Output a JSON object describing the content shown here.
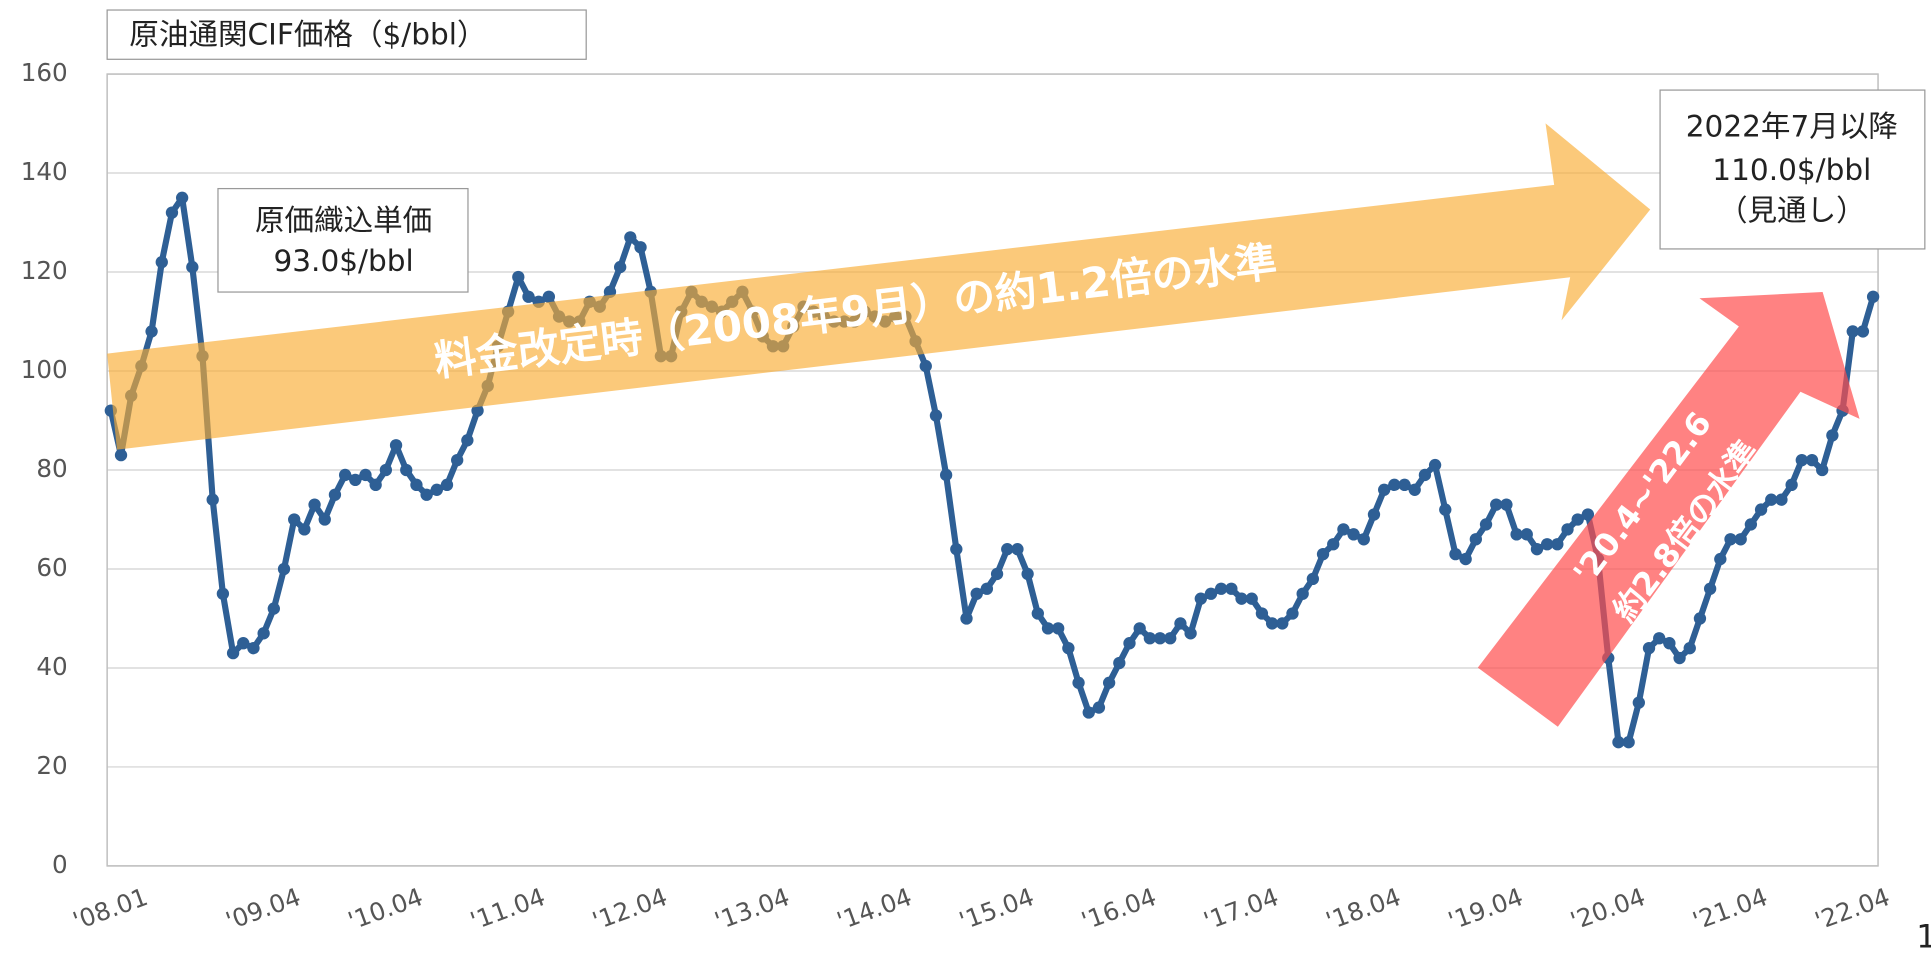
{
  "chart_data": {
    "type": "line",
    "title": "原油通関CIF価格（$/bbl）",
    "categories": [
      "'08.01",
      null,
      null,
      null,
      null,
      null,
      null,
      null,
      null,
      null,
      null,
      null,
      null,
      null,
      null,
      "'09.04",
      null,
      null,
      null,
      null,
      null,
      null,
      null,
      null,
      null,
      null,
      null,
      "'10.04",
      null,
      null,
      null,
      null,
      null,
      null,
      null,
      null,
      null,
      null,
      null,
      "'11.04",
      null,
      null,
      null,
      null,
      null,
      null,
      null,
      null,
      null,
      null,
      null,
      "'12.04",
      null,
      null,
      null,
      null,
      null,
      null,
      null,
      null,
      null,
      null,
      null,
      "'13.04",
      null,
      null,
      null,
      null,
      null,
      null,
      null,
      null,
      null,
      null,
      null,
      "'14.04",
      null,
      null,
      null,
      null,
      null,
      null,
      null,
      null,
      null,
      null,
      null,
      "'15.04",
      null,
      null,
      null,
      null,
      null,
      null,
      null,
      null,
      null,
      null,
      null,
      "'16.04",
      null,
      null,
      null,
      null,
      null,
      null,
      null,
      null,
      null,
      null,
      null,
      "'17.04",
      null,
      null,
      null,
      null,
      null,
      null,
      null,
      null,
      null,
      null,
      null,
      "'18.04",
      null,
      null,
      null,
      null,
      null,
      null,
      null,
      null,
      null,
      null,
      null,
      "'19.04",
      null,
      null,
      null,
      null,
      null,
      null,
      null,
      null,
      null,
      null,
      null,
      "'20.04",
      null,
      null,
      null,
      null,
      null,
      null,
      null,
      null,
      null,
      null,
      null,
      "'21.04",
      null,
      null,
      null,
      null,
      null,
      null,
      null,
      null,
      null,
      null,
      null,
      "'22.04",
      null,
      null
    ],
    "series": [
      {
        "name": "原油通関CIF価格",
        "color": "#2e5f95",
        "values": [
          92,
          83,
          95,
          101,
          108,
          122,
          132,
          135,
          121,
          103,
          74,
          55,
          43,
          45,
          44,
          47,
          52,
          60,
          70,
          68,
          73,
          70,
          75,
          79,
          78,
          79,
          77,
          80,
          85,
          80,
          77,
          75,
          76,
          77,
          82,
          86,
          92,
          97,
          105,
          112,
          119,
          115,
          114,
          115,
          111,
          110,
          110,
          114,
          113,
          116,
          121,
          127,
          125,
          116,
          103,
          103,
          112,
          116,
          114,
          113,
          112,
          114,
          116,
          112,
          107,
          105,
          105,
          109,
          113,
          112,
          111,
          110,
          110,
          110,
          112,
          111,
          110,
          111,
          111,
          106,
          101,
          91,
          79,
          64,
          50,
          55,
          56,
          59,
          64,
          64,
          59,
          51,
          48,
          48,
          44,
          37,
          31,
          32,
          37,
          41,
          45,
          48,
          46,
          46,
          46,
          49,
          47,
          54,
          55,
          56,
          56,
          54,
          54,
          51,
          49,
          49,
          51,
          55,
          58,
          63,
          65,
          68,
          67,
          66,
          71,
          76,
          77,
          77,
          76,
          79,
          81,
          72,
          63,
          62,
          66,
          69,
          73,
          73,
          67,
          67,
          64,
          65,
          65,
          68,
          70,
          71,
          62,
          42,
          25,
          25,
          33,
          44,
          46,
          45,
          42,
          44,
          50,
          56,
          62,
          66,
          66,
          69,
          72,
          74,
          74,
          77,
          82,
          82,
          80,
          87,
          92,
          108,
          108,
          115
        ]
      }
    ],
    "ylim": [
      0,
      160
    ],
    "yticks": [
      0,
      20,
      40,
      60,
      80,
      100,
      120,
      140,
      160
    ],
    "grid": true,
    "annotations": {
      "unit_price": [
        "原価織込単価",
        "93.0$/bbl"
      ],
      "forecast": [
        "2022年7月以降",
        "110.0$/bbl",
        "（見通し）"
      ],
      "increase_since_revision": "料金改定時（2008年9月）の約1.2倍の水準",
      "increase_since_2020": [
        "'20.4~'22.6",
        "約2.8倍の水準"
      ]
    }
  },
  "page_number": "1"
}
